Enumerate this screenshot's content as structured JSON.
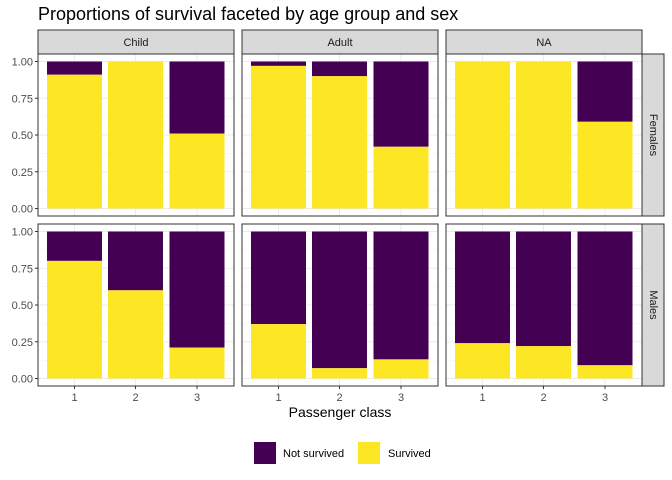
{
  "chart_data": {
    "type": "bar",
    "stacked": true,
    "title": "Proportions of survival faceted by age group and sex",
    "xlabel": "Passenger class",
    "ylabel": "",
    "ylim": [
      0,
      1
    ],
    "y_ticks": [
      "0.00",
      "0.25",
      "0.50",
      "0.75",
      "1.00"
    ],
    "categories": [
      "1",
      "2",
      "3"
    ],
    "facet_columns": [
      "Child",
      "Adult",
      "NA"
    ],
    "facet_rows": [
      "Females",
      "Males"
    ],
    "grid": true,
    "legend_position": "bottom",
    "legend": [
      {
        "name": "Not survived",
        "color": "#440154"
      },
      {
        "name": "Survived",
        "color": "#fde725"
      }
    ],
    "panels": [
      {
        "row": "Females",
        "column": "Child",
        "survived": [
          0.91,
          1.0,
          0.51
        ]
      },
      {
        "row": "Females",
        "column": "Adult",
        "survived": [
          0.97,
          0.9,
          0.42
        ]
      },
      {
        "row": "Females",
        "column": "NA",
        "survived": [
          1.0,
          1.0,
          0.59
        ]
      },
      {
        "row": "Males",
        "column": "Child",
        "survived": [
          0.8,
          0.6,
          0.21
        ]
      },
      {
        "row": "Males",
        "column": "Adult",
        "survived": [
          0.37,
          0.07,
          0.13
        ]
      },
      {
        "row": "Males",
        "column": "NA",
        "survived": [
          0.24,
          0.22,
          0.09
        ]
      }
    ]
  }
}
